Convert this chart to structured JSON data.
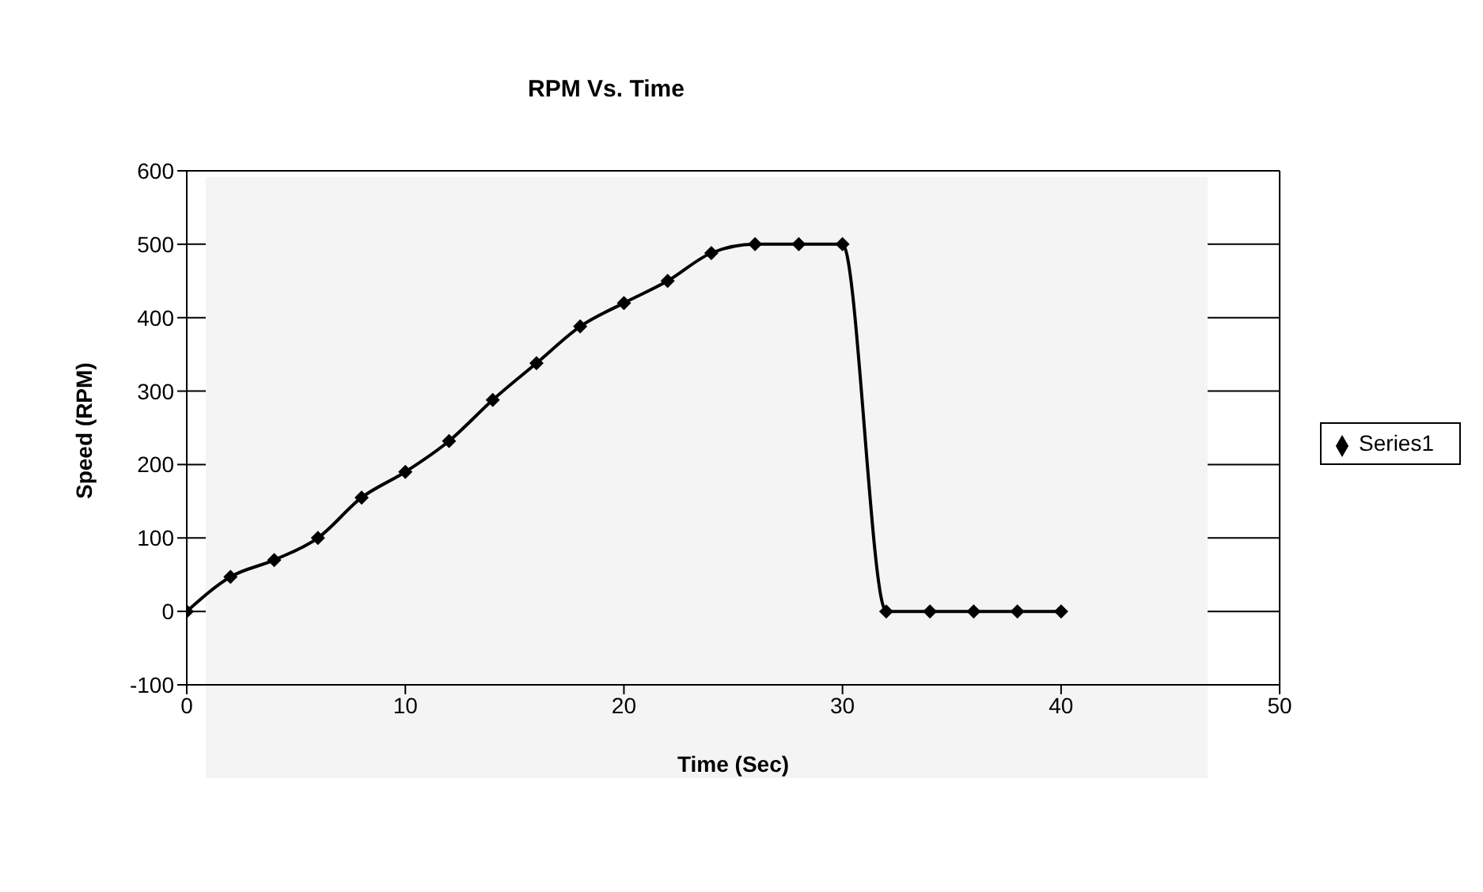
{
  "chart_data": {
    "type": "line",
    "title": "RPM Vs. Time",
    "xlabel": "Time (Sec)",
    "ylabel": "Speed (RPM)",
    "x": [
      0,
      2,
      4,
      6,
      8,
      10,
      12,
      14,
      16,
      18,
      20,
      22,
      24,
      26,
      28,
      30,
      32,
      34,
      36,
      38,
      40
    ],
    "series": [
      {
        "name": "Series1",
        "color": "#000000",
        "values": [
          0,
          47,
          70,
          100,
          155,
          190,
          232,
          288,
          338,
          388,
          420,
          450,
          488,
          500,
          500,
          500,
          0,
          0,
          0,
          0,
          0
        ]
      }
    ],
    "xlim": [
      0,
      50
    ],
    "xticks": [
      0,
      10,
      20,
      30,
      40,
      50
    ],
    "ylim": [
      -100,
      600
    ],
    "yticks": [
      -100,
      0,
      100,
      200,
      300,
      400,
      500,
      600
    ],
    "grid": "y",
    "legend": "right",
    "marker": "diamond",
    "line_style": "solid"
  }
}
